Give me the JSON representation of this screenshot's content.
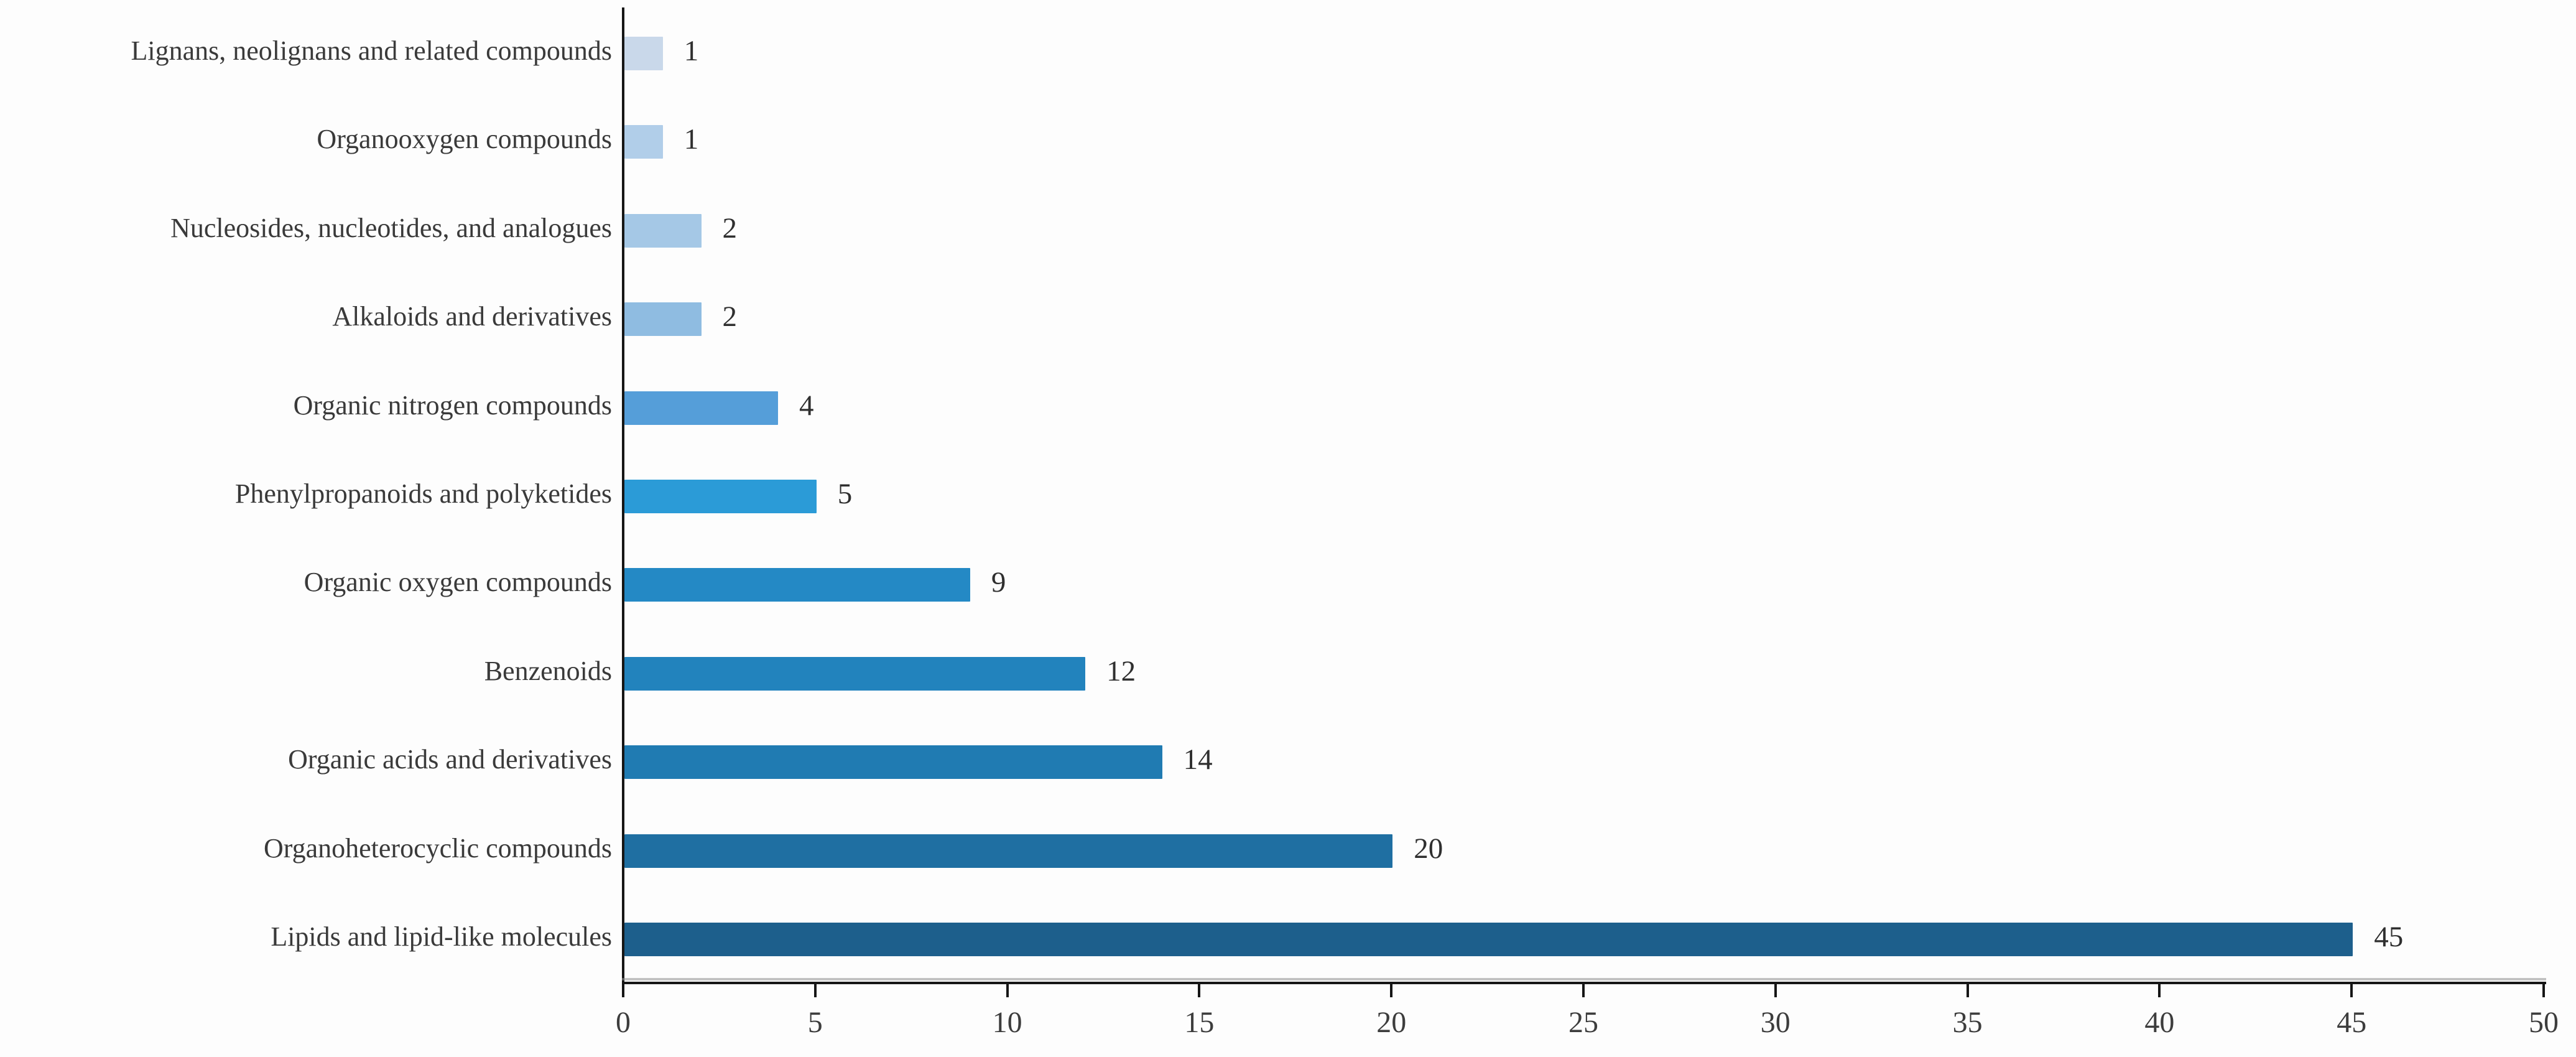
{
  "chart_data": {
    "type": "bar",
    "orientation": "horizontal",
    "title": "",
    "xlabel": "",
    "ylabel": "",
    "xlim": [
      0,
      50
    ],
    "xticks": [
      0,
      5,
      10,
      15,
      20,
      25,
      30,
      35,
      40,
      45,
      50
    ],
    "grid": false,
    "legend": "none",
    "categories": [
      "Lignans, neolignans and related compounds",
      "Organooxygen compounds",
      "Nucleosides, nucleotides, and analogues",
      "Alkaloids and derivatives",
      "Organic nitrogen compounds",
      "Phenylpropanoids and polyketides",
      "Organic oxygen compounds",
      "Benzenoids",
      "Organic acids and derivatives",
      "Organoheterocyclic compounds",
      "Lipids and lipid-like molecules"
    ],
    "values": [
      1,
      1,
      2,
      2,
      4,
      5,
      9,
      12,
      14,
      20,
      45
    ],
    "value_labels": [
      "1",
      "1",
      "2",
      "2",
      "4",
      "5",
      "9",
      "12",
      "14",
      "20",
      "45"
    ],
    "bar_colors": [
      "#C9D8EA",
      "#B1CEE9",
      "#A5C8E6",
      "#8FBCE1",
      "#559ED9",
      "#2B9BD7",
      "#2489C5",
      "#2283BD",
      "#207BB2",
      "#1F6FA2",
      "#1D5F8C"
    ],
    "axis_color": "#161616",
    "text_color": "#3a3a3a"
  }
}
